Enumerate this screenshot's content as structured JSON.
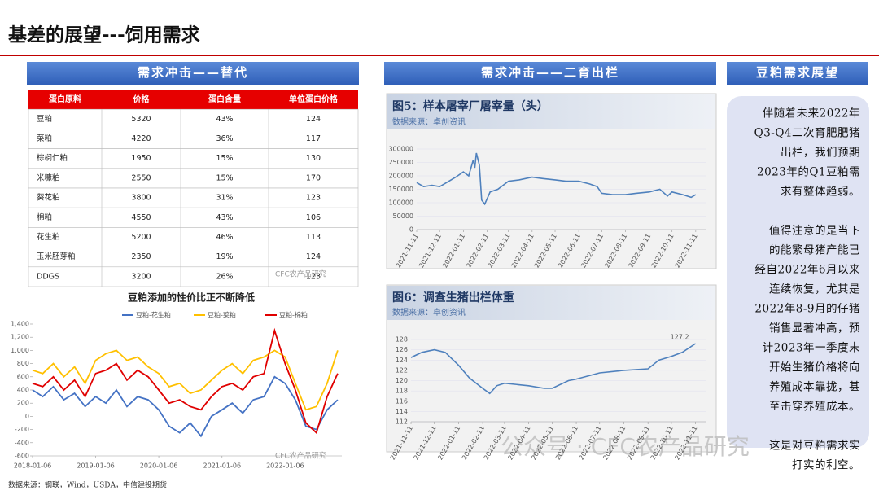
{
  "header": {
    "title": "基差的展望---饲用需求"
  },
  "sections": [
    "需求冲击——替代",
    "需求冲击——二育出栏",
    "豆粕需求展望"
  ],
  "table": {
    "header": [
      "蛋白原料",
      "价格",
      "蛋白含量",
      "单位蛋白价格"
    ],
    "rows": [
      [
        "豆粕",
        "5320",
        "43%",
        "124"
      ],
      [
        "菜粕",
        "4220",
        "36%",
        "117"
      ],
      [
        "棕榈仁粕",
        "1950",
        "15%",
        "130"
      ],
      [
        "米糠粕",
        "2550",
        "15%",
        "170"
      ],
      [
        "葵花粕",
        "3800",
        "31%",
        "123"
      ],
      [
        "棉粕",
        "4550",
        "43%",
        "106"
      ],
      [
        "花生粕",
        "5200",
        "46%",
        "113"
      ],
      [
        "玉米胚芽粕",
        "2350",
        "19%",
        "124"
      ],
      [
        "DDGS",
        "3200",
        "26%",
        "123"
      ]
    ]
  },
  "chart_data": [
    {
      "type": "line",
      "title": "豆粕添加的性价比正不断降低",
      "legend": "top",
      "grid": false,
      "x": [
        "2018-01-06",
        "2018-03-06",
        "2018-05-06",
        "2018-07-06",
        "2018-09-06",
        "2018-11-06",
        "2019-01-06",
        "2019-03-06",
        "2019-05-06",
        "2019-07-06",
        "2019-09-06",
        "2019-11-06",
        "2020-01-06",
        "2020-03-06",
        "2020-05-06",
        "2020-07-06",
        "2020-09-06",
        "2020-11-06",
        "2021-01-06",
        "2021-03-06",
        "2021-05-06",
        "2021-07-06",
        "2021-09-06",
        "2021-11-06",
        "2022-01-06",
        "2022-03-06",
        "2022-05-06",
        "2022-07-06",
        "2022-09-06",
        "2022-11-06"
      ],
      "series": [
        {
          "name": "豆粕-花生粕",
          "color": "#4472c4",
          "values": [
            400,
            300,
            450,
            250,
            350,
            150,
            300,
            200,
            400,
            150,
            300,
            250,
            100,
            -150,
            -250,
            -100,
            -300,
            0,
            100,
            200,
            50,
            250,
            300,
            600,
            500,
            250,
            -150,
            -200,
            100,
            250
          ]
        },
        {
          "name": "豆粕-菜粕",
          "color": "#ffc000",
          "values": [
            700,
            650,
            800,
            600,
            750,
            500,
            850,
            950,
            1000,
            850,
            900,
            750,
            650,
            450,
            500,
            350,
            400,
            550,
            700,
            800,
            650,
            850,
            900,
            1000,
            900,
            500,
            100,
            150,
            500,
            1000
          ]
        },
        {
          "name": "豆粕-棉粕",
          "color": "#e00000",
          "values": [
            500,
            450,
            600,
            400,
            550,
            300,
            650,
            700,
            800,
            550,
            700,
            600,
            400,
            200,
            250,
            150,
            100,
            300,
            450,
            500,
            400,
            600,
            650,
            1300,
            800,
            400,
            -100,
            -250,
            300,
            650
          ]
        }
      ],
      "xlim": [
        "2018-01-06",
        "2022-11-30"
      ],
      "xticks": [
        "2018-01-06",
        "2019-01-06",
        "2020-01-06",
        "2021-01-06",
        "2022-01-06"
      ],
      "ylim": [
        -600,
        1400
      ],
      "yticks": [
        -600,
        -400,
        -200,
        0,
        200,
        400,
        600,
        800,
        {
          "value": 1000,
          "label": "1,000"
        },
        {
          "value": 1200,
          "label": "1,200"
        },
        {
          "value": 1400,
          "label": "1,400"
        }
      ]
    },
    {
      "type": "line",
      "title": "图5：样本屠宰厂屠宰量（头）",
      "subtitle": "数据来源：卓创资讯",
      "grid": true,
      "color": "#4f81bd",
      "x": [
        "2021-11-11",
        "2021-11-20",
        "2021-12-01",
        "2021-12-11",
        "2021-12-20",
        "2022-01-01",
        "2022-01-11",
        "2022-01-18",
        "2022-01-24",
        "2022-01-26",
        "2022-01-28",
        "2022-02-01",
        "2022-02-04",
        "2022-02-08",
        "2022-02-15",
        "2022-02-25",
        "2022-03-11",
        "2022-03-25",
        "2022-04-11",
        "2022-04-25",
        "2022-05-11",
        "2022-05-25",
        "2022-06-11",
        "2022-06-25",
        "2022-07-05",
        "2022-07-11",
        "2022-07-25",
        "2022-08-11",
        "2022-08-25",
        "2022-09-11",
        "2022-09-25",
        "2022-10-05",
        "2022-10-11",
        "2022-10-25",
        "2022-11-05",
        "2022-11-11"
      ],
      "values": [
        175000,
        160000,
        165000,
        160000,
        175000,
        195000,
        215000,
        200000,
        260000,
        230000,
        285000,
        240000,
        110000,
        95000,
        140000,
        150000,
        180000,
        185000,
        195000,
        190000,
        185000,
        180000,
        180000,
        170000,
        160000,
        135000,
        130000,
        130000,
        135000,
        140000,
        150000,
        125000,
        140000,
        130000,
        120000,
        130000
      ],
      "xlim": [
        "2021-11-11",
        "2022-11-25"
      ],
      "xticks": [
        "2021-11-11",
        "2021-12-11",
        "2022-01-11",
        "2022-02-11",
        "2022-03-11",
        "2022-04-11",
        "2022-05-11",
        "2022-06-11",
        "2022-07-11",
        "2022-08-11",
        "2022-09-11",
        "2022-10-11",
        "2022-11-11"
      ],
      "ylim": [
        0,
        300000
      ],
      "yticks": [
        0,
        50000,
        100000,
        150000,
        200000,
        250000,
        300000
      ]
    },
    {
      "type": "line",
      "title": "图6：调查生猪出栏体重",
      "subtitle": "数据来源：卓创资讯",
      "grid": true,
      "color": "#4f81bd",
      "annotation": "127.2",
      "x": [
        "2021-11-11",
        "2021-11-25",
        "2021-12-11",
        "2021-12-25",
        "2022-01-11",
        "2022-01-25",
        "2022-02-11",
        "2022-02-20",
        "2022-03-01",
        "2022-03-11",
        "2022-04-11",
        "2022-05-01",
        "2022-05-11",
        "2022-06-01",
        "2022-06-11",
        "2022-07-11",
        "2022-08-11",
        "2022-09-11",
        "2022-09-25",
        "2022-10-11",
        "2022-10-25",
        "2022-11-11"
      ],
      "values": [
        124.5,
        125.5,
        126,
        125.5,
        123,
        120.5,
        118.5,
        117.5,
        119,
        119.5,
        119,
        118.5,
        118.5,
        120,
        120.3,
        121.5,
        122,
        122.3,
        124,
        124.7,
        125.5,
        127.2
      ],
      "xlim": [
        "2021-11-11",
        "2022-11-25"
      ],
      "xticks": [
        "2021-11-11",
        "2021-12-11",
        "2022-01-11",
        "2022-02-11",
        "2022-03-11",
        "2022-04-11",
        "2022-05-11",
        "2022-06-11",
        "2022-07-11",
        "2022-08-11",
        "2022-09-11",
        "2022-10-11",
        "2022-11-11"
      ],
      "ylim": [
        112,
        128
      ],
      "yticks": [
        112,
        114,
        116,
        118,
        120,
        122,
        124,
        126,
        128
      ]
    }
  ],
  "outlook": {
    "paragraphs": [
      [
        "伴随着未来2022年",
        "Q3-Q4二次育肥肥猪",
        "出栏，我们预期",
        "2023年的Q1豆粕需",
        "求有整体趋弱。"
      ],
      [
        "值得注意的是当下",
        "的能繁母猪产能已",
        "经自2022年6月以来",
        "连续恢复，尤其是",
        "2022年8-9月的仔猪",
        "销售显著冲高，预",
        "计2023年一季度末",
        "开始生猪价格将向",
        "养殖成本靠拢，甚",
        "至击穿养殖成本。"
      ],
      [
        "这是对豆粕需求实",
        "打实的利空。"
      ]
    ]
  },
  "footer": {
    "source": "数据来源：钢联，Wind，USDA，中信建投期货"
  },
  "watermarks": [
    "CFC农产品研究",
    "CFC农产品研究",
    "公众号 · CFC农产品研究"
  ]
}
